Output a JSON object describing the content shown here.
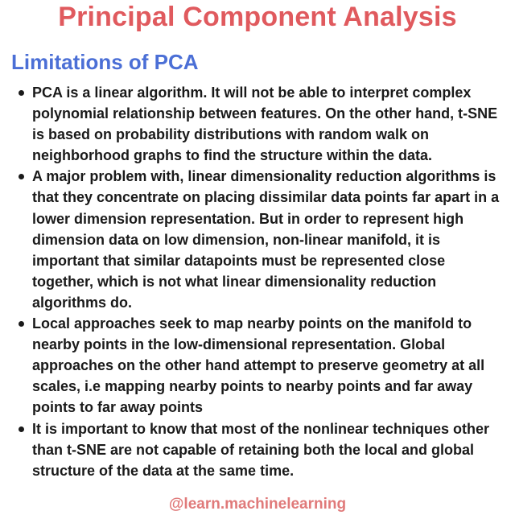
{
  "title": "Principal Component Analysis",
  "subtitle": "Limitations of PCA",
  "bullets": [
    "PCA is a linear algorithm. It will not be able to interpret complex polynomial relationship between features. On the other hand, t-SNE is based on probability distributions with random walk on neighborhood graphs to find the structure within the data.",
    "A major problem with, linear dimensionality reduction algorithms is that they concentrate on placing dissimilar data points far apart in a lower dimension representation. But in order to represent high dimension data on low dimension, non-linear manifold, it is important that similar datapoints must be represented close together, which is not what linear dimensionality reduction algorithms do.",
    "Local approaches seek to map nearby points on the manifold to nearby points in the low-dimensional representation. Global approaches on the other hand attempt to preserve geometry at all scales, i.e mapping nearby points to nearby points and far away points to far away points",
    "It is important to know that most of the nonlinear techniques other than t-SNE are not capable of retaining both the local and global structure of the data at the same time."
  ],
  "footer": "@learn.machinelearning",
  "colors": {
    "title": "#e05a5e",
    "subtitle": "#4b6fd6",
    "body_text": "#1a1a1a",
    "footer": "#e07a7a",
    "background": "#ffffff"
  }
}
